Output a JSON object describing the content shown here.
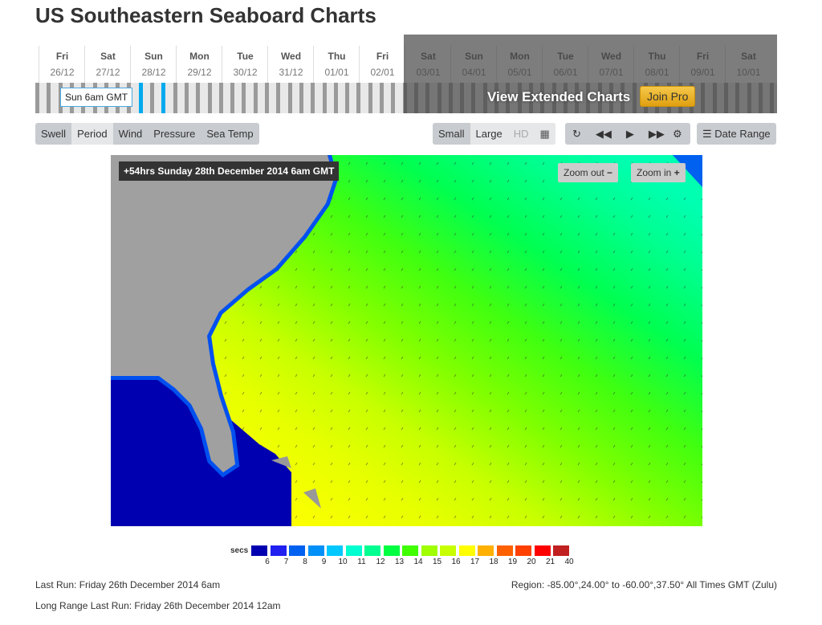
{
  "title": "US Southeastern Seaboard Charts",
  "timeline": {
    "days": [
      {
        "name": "Fri",
        "date": "26/12"
      },
      {
        "name": "Sat",
        "date": "27/12"
      },
      {
        "name": "Sun",
        "date": "28/12"
      },
      {
        "name": "Mon",
        "date": "29/12"
      },
      {
        "name": "Tue",
        "date": "30/12"
      },
      {
        "name": "Wed",
        "date": "31/12"
      },
      {
        "name": "Thu",
        "date": "01/01"
      },
      {
        "name": "Fri",
        "date": "02/01"
      },
      {
        "name": "Sat",
        "date": "03/01"
      },
      {
        "name": "Sun",
        "date": "04/01"
      },
      {
        "name": "Mon",
        "date": "05/01"
      },
      {
        "name": "Tue",
        "date": "06/01"
      },
      {
        "name": "Wed",
        "date": "07/01"
      },
      {
        "name": "Thu",
        "date": "08/01"
      },
      {
        "name": "Fri",
        "date": "09/01"
      },
      {
        "name": "Sat",
        "date": "10/01"
      }
    ],
    "tooltip": "Sun 6am GMT",
    "extended_label": "View Extended Charts",
    "join_pro": "Join Pro",
    "accent": "#00aaee"
  },
  "toolbar": {
    "types": [
      "Swell",
      "Period",
      "Wind",
      "Pressure",
      "Sea Temp"
    ],
    "active_type": "Period",
    "sizes": [
      "Small",
      "Large",
      "HD"
    ],
    "active_size": "Large",
    "date_range": "Date Range"
  },
  "map": {
    "label": "+54hrs Sunday 28th December 2014 6am GMT",
    "zoom_out": "Zoom out",
    "zoom_in": "Zoom in"
  },
  "legend": {
    "unit": "secs",
    "values": [
      "6",
      "7",
      "8",
      "9",
      "10",
      "11",
      "12",
      "13",
      "14",
      "15",
      "16",
      "17",
      "18",
      "19",
      "20",
      "21",
      "40"
    ],
    "colors": [
      "#0000b0",
      "#2020f0",
      "#0060f0",
      "#0090f8",
      "#00c8ff",
      "#00ffd0",
      "#00ff90",
      "#00ff40",
      "#40ff00",
      "#a0ff00",
      "#c8ff00",
      "#ffff00",
      "#ffb000",
      "#ff6000",
      "#ff4000",
      "#ff0000",
      "#c02020"
    ]
  },
  "footer": {
    "last_run": "Last Run: Friday 26th December 2014 6am",
    "long_range": "Long Range Last Run: Friday 26th December 2014 12am",
    "region": "Region: -85.00°,24.00° to -60.00°,37.50° All Times GMT (Zulu)"
  }
}
